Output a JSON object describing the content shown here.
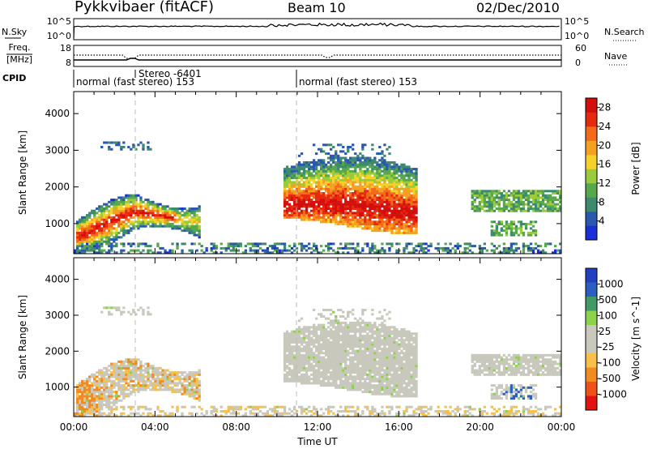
{
  "header": {
    "station": "Pykkvibaer (fitACF)",
    "beam": "Beam 10",
    "date": "02/Dec/2010"
  },
  "top_panels": {
    "nsky": {
      "label": "N.Sky",
      "y_ticks": [
        "10^5",
        "10^0"
      ],
      "right_label": "N.Search",
      "right_ticks": [
        "10^5",
        "10^0"
      ]
    },
    "freq": {
      "label_top": "Freq.",
      "label_bottom": "[MHz]",
      "y_ticks": [
        "18",
        "8"
      ],
      "right_label": "Nave",
      "right_ticks": [
        "60",
        "0"
      ]
    },
    "cpid": {
      "label": "CPID",
      "segments": [
        "normal (fast stereo) 153",
        "Stereo -6401",
        "normal (fast stereo) 153"
      ]
    }
  },
  "colors": {
    "power": [
      "#1a2fd8",
      "#2a57b0",
      "#3d8a6e",
      "#56a84a",
      "#9acb3a",
      "#f4d22a",
      "#f5a020",
      "#f26a1a",
      "#e62a10",
      "#d40d0d"
    ],
    "velocity": [
      "#e21212",
      "#f0501a",
      "#f28a22",
      "#f6c04a",
      "#c8c8bc",
      "#c8c8bc",
      "#8cd24a",
      "#3f9a68",
      "#2a5ec0",
      "#2040c0"
    ]
  },
  "chart_data": [
    {
      "type": "heatmap",
      "name": "Power",
      "xlabel": "",
      "ylabel": "Slant Range [km]",
      "x_ticks": [
        "00:00",
        "04:00",
        "08:00",
        "12:00",
        "16:00",
        "20:00",
        "00:00"
      ],
      "xlim_hours": [
        0,
        24
      ],
      "y_ticks": [
        1000,
        2000,
        3000,
        4000
      ],
      "ylim": [
        180,
        4600
      ],
      "colorbar": {
        "label": "Power [dB]",
        "ticks": [
          4,
          8,
          12,
          16,
          20,
          24,
          28
        ],
        "range": [
          0,
          30
        ]
      },
      "echo_regions": [
        {
          "t": [
            0.1,
            6.1
          ],
          "r": [
            300,
            1700
          ],
          "peak_db": 26
        },
        {
          "t": [
            1.2,
            3.8
          ],
          "r": [
            2900,
            3200
          ],
          "peak_db": 6
        },
        {
          "t": [
            10.2,
            16.8
          ],
          "r": [
            800,
            3200
          ],
          "peak_db": 30
        },
        {
          "t": [
            19.5,
            23.9
          ],
          "r": [
            600,
            1900
          ],
          "peak_db": 18
        },
        {
          "t": [
            0.0,
            24.0
          ],
          "r": [
            200,
            450
          ],
          "peak_db": 10
        }
      ]
    },
    {
      "type": "heatmap",
      "name": "Velocity",
      "xlabel": "Time UT",
      "ylabel": "Slant Range [km]",
      "x_ticks": [
        "00:00",
        "04:00",
        "08:00",
        "12:00",
        "16:00",
        "20:00",
        "00:00"
      ],
      "xlim_hours": [
        0,
        24
      ],
      "y_ticks": [
        1000,
        2000,
        3000,
        4000
      ],
      "ylim": [
        180,
        4600
      ],
      "colorbar": {
        "label": "Velocity [m s^-1]",
        "ticks": [
          1000,
          500,
          100,
          25,
          -25,
          -100,
          -500,
          -1000
        ]
      },
      "echo_regions": [
        {
          "t": [
            0.1,
            6.1
          ],
          "r": [
            300,
            1800
          ],
          "velocity": -200
        },
        {
          "t": [
            10.2,
            16.8
          ],
          "r": [
            800,
            3200
          ],
          "velocity": 0
        },
        {
          "t": [
            19.5,
            23.9
          ],
          "r": [
            600,
            1900
          ],
          "velocity": 0
        }
      ]
    }
  ]
}
